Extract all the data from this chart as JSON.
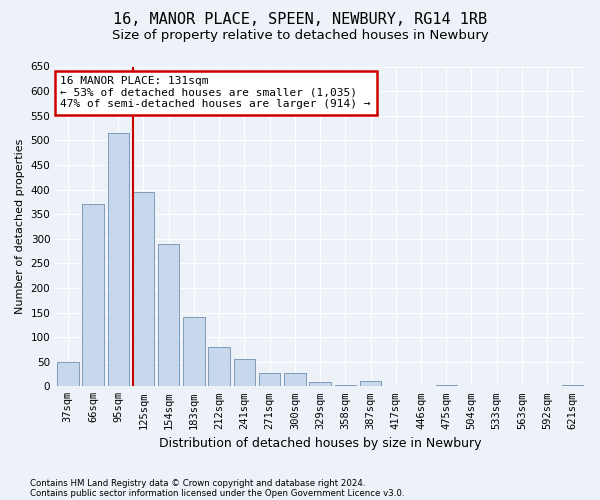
{
  "title1": "16, MANOR PLACE, SPEEN, NEWBURY, RG14 1RB",
  "title2": "Size of property relative to detached houses in Newbury",
  "xlabel": "Distribution of detached houses by size in Newbury",
  "ylabel": "Number of detached properties",
  "categories": [
    "37sqm",
    "66sqm",
    "95sqm",
    "125sqm",
    "154sqm",
    "183sqm",
    "212sqm",
    "241sqm",
    "271sqm",
    "300sqm",
    "329sqm",
    "358sqm",
    "387sqm",
    "417sqm",
    "446sqm",
    "475sqm",
    "504sqm",
    "533sqm",
    "563sqm",
    "592sqm",
    "621sqm"
  ],
  "values": [
    50,
    370,
    515,
    395,
    290,
    140,
    80,
    55,
    28,
    28,
    8,
    3,
    10,
    0,
    0,
    2,
    0,
    0,
    0,
    0,
    2
  ],
  "bar_color": "#c8d8ec",
  "bar_edge_color": "#7090b0",
  "vline_x": 2.575,
  "vline_color": "#cc0000",
  "annotation_text": "16 MANOR PLACE: 131sqm\n← 53% of detached houses are smaller (1,035)\n47% of semi-detached houses are larger (914) →",
  "annotation_box_facecolor": "#ffffff",
  "annotation_box_edgecolor": "#cc0000",
  "ylim_max": 650,
  "yticks": [
    0,
    50,
    100,
    150,
    200,
    250,
    300,
    350,
    400,
    450,
    500,
    550,
    600,
    650
  ],
  "footer1": "Contains HM Land Registry data © Crown copyright and database right 2024.",
  "footer2": "Contains public sector information licensed under the Open Government Licence v3.0.",
  "bg_color": "#edf1f8",
  "title1_fontsize": 11,
  "title2_fontsize": 9.5,
  "tick_fontsize": 7.5,
  "ylabel_fontsize": 8,
  "xlabel_fontsize": 9,
  "annotation_fontsize": 8,
  "footer_fontsize": 6.2
}
